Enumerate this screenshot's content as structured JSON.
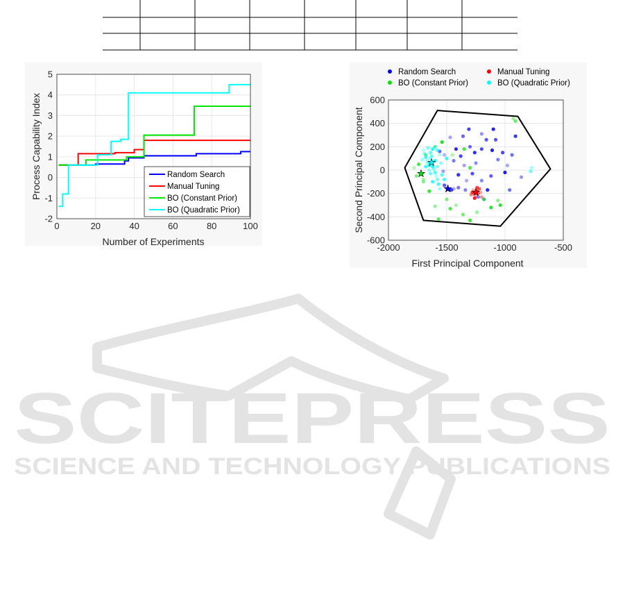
{
  "watermark": {
    "brand": "SCITEPRESS",
    "tagline": "SCIENCE AND TECHNOLOGY PUBLICATIONS"
  },
  "colors": {
    "random": "#0000ff",
    "manual": "#ff0000",
    "constant": "#00e600",
    "quadratic": "#00ffff",
    "hull": "#000000",
    "grid": "#e6e6e6",
    "watermark": "#e3e3e3"
  },
  "chart_data": [
    {
      "type": "line",
      "xlabel": "Number of Experiments",
      "ylabel": "Process Capability Index",
      "xlim": [
        0,
        100
      ],
      "ylim": [
        -2,
        5
      ],
      "xticks": [
        "0",
        "20",
        "40",
        "60",
        "80",
        "100"
      ],
      "yticks": [
        "-2",
        "-1",
        "0",
        "1",
        "2",
        "3",
        "4",
        "5"
      ],
      "grid": true,
      "legend_position": "bottom-right",
      "series": [
        {
          "name": "Random Search",
          "color_key": "random",
          "x": [
            1,
            5,
            10,
            20,
            35,
            37,
            45,
            72,
            95,
            100
          ],
          "y": [
            0.6,
            0.6,
            0.6,
            0.65,
            0.8,
            0.95,
            1.05,
            1.15,
            1.25,
            1.25
          ]
        },
        {
          "name": "Manual Tuning",
          "color_key": "manual",
          "x": [
            1,
            10,
            11,
            30,
            40,
            43,
            45,
            100
          ],
          "y": [
            0.6,
            0.6,
            1.15,
            1.2,
            1.35,
            1.35,
            1.8,
            1.8
          ]
        },
        {
          "name": "BO (Constant Prior)",
          "color_key": "constant",
          "x": [
            1,
            15,
            20,
            36,
            45,
            70,
            71,
            100
          ],
          "y": [
            0.6,
            0.85,
            0.85,
            1.0,
            2.05,
            2.05,
            3.45,
            3.45
          ]
        },
        {
          "name": "BO (Quadratic Prior)",
          "color_key": "quadratic",
          "x": [
            1,
            2,
            3,
            5,
            6,
            20,
            21,
            28,
            31,
            33,
            36,
            37,
            88,
            89,
            100
          ],
          "y": [
            -1.4,
            -1.4,
            -0.8,
            -0.8,
            0.6,
            0.6,
            1.1,
            1.75,
            1.75,
            1.85,
            1.85,
            4.1,
            4.1,
            4.5,
            4.5
          ]
        }
      ]
    },
    {
      "type": "scatter",
      "xlabel": "First Principal Component",
      "ylabel": "Second Principal Component",
      "xlim": [
        -2000,
        -500
      ],
      "ylim": [
        -600,
        600
      ],
      "xticks": [
        "-2000",
        "-1500",
        "-1000",
        "-500"
      ],
      "yticks": [
        "-600",
        "-400",
        "-200",
        "0",
        "200",
        "400",
        "600"
      ],
      "grid": true,
      "legend_position": "top",
      "hull": [
        [
          -1580,
          510
        ],
        [
          -890,
          460
        ],
        [
          -610,
          10
        ],
        [
          -1040,
          -480
        ],
        [
          -1700,
          -430
        ],
        [
          -1860,
          20
        ]
      ],
      "series": [
        {
          "name": "Random Search",
          "color_key": "random",
          "best": [
            -1490,
            -160
          ],
          "points": [
            [
              -1520,
              130
            ],
            [
              -1440,
              80
            ],
            [
              -1380,
              120
            ],
            [
              -1350,
              40
            ],
            [
              -1300,
              200
            ],
            [
              -1260,
              150
            ],
            [
              -1200,
              310
            ],
            [
              -1160,
              260
            ],
            [
              -1110,
              170
            ],
            [
              -1060,
              90
            ],
            [
              -1020,
              150
            ],
            [
              -980,
              40
            ],
            [
              -940,
              130
            ],
            [
              -910,
              290
            ],
            [
              -860,
              -60
            ],
            [
              -1120,
              -50
            ],
            [
              -1150,
              -170
            ],
            [
              -1200,
              -90
            ],
            [
              -1280,
              -30
            ],
            [
              -1330,
              -90
            ],
            [
              -1400,
              -150
            ],
            [
              -1460,
              -170
            ],
            [
              -1530,
              -10
            ],
            [
              -1360,
              290
            ],
            [
              -1420,
              180
            ],
            [
              -1250,
              60
            ],
            [
              -1080,
              260
            ],
            [
              -1000,
              -20
            ],
            [
              -1230,
              -230
            ],
            [
              -1310,
              350
            ],
            [
              -1470,
              280
            ],
            [
              -1560,
              160
            ],
            [
              -1400,
              -40
            ],
            [
              -1180,
              -250
            ],
            [
              -1520,
              -130
            ],
            [
              -1100,
              350
            ],
            [
              -1340,
              -170
            ],
            [
              -1200,
              180
            ],
            [
              -1440,
              -160
            ],
            [
              -960,
              -170
            ]
          ]
        },
        {
          "name": "Manual Tuning",
          "color_key": "manual",
          "best": [
            -1250,
            -190
          ],
          "points": [
            [
              -1270,
              -170
            ],
            [
              -1260,
              -200
            ],
            [
              -1240,
              -180
            ],
            [
              -1250,
              -220
            ],
            [
              -1230,
              -200
            ],
            [
              -1280,
              -190
            ],
            [
              -1200,
              -230
            ],
            [
              -1220,
              -160
            ],
            [
              -1260,
              -240
            ],
            [
              -1290,
              -210
            ],
            [
              -1240,
              -150
            ],
            [
              -1210,
              -190
            ]
          ]
        },
        {
          "name": "BO (Constant Prior)",
          "color_key": "constant",
          "best": [
            -1720,
            -30
          ],
          "points": [
            [
              -1780,
              20
            ],
            [
              -1760,
              -50
            ],
            [
              -1740,
              50
            ],
            [
              -1700,
              -80
            ],
            [
              -1680,
              130
            ],
            [
              -1650,
              -180
            ],
            [
              -1600,
              -310
            ],
            [
              -1570,
              -420
            ],
            [
              -1540,
              240
            ],
            [
              -1500,
              -250
            ],
            [
              -1470,
              -330
            ],
            [
              -1420,
              -300
            ],
            [
              -1360,
              -380
            ],
            [
              -1300,
              -430
            ],
            [
              -1240,
              -360
            ],
            [
              -1180,
              -250
            ],
            [
              -1120,
              -320
            ],
            [
              -1060,
              -260
            ],
            [
              -1300,
              20
            ],
            [
              -1450,
              130
            ],
            [
              -1600,
              200
            ],
            [
              -1350,
              180
            ],
            [
              -930,
              440
            ],
            [
              -910,
              420
            ],
            [
              -1040,
              -300
            ],
            [
              -1700,
              -100
            ]
          ]
        },
        {
          "name": "BO (Quadratic Prior)",
          "color_key": "quadratic",
          "best": [
            -1630,
            65
          ],
          "points": [
            [
              -1700,
              170
            ],
            [
              -1690,
              140
            ],
            [
              -1680,
              110
            ],
            [
              -1670,
              80
            ],
            [
              -1660,
              60
            ],
            [
              -1650,
              40
            ],
            [
              -1640,
              100
            ],
            [
              -1630,
              120
            ],
            [
              -1620,
              30
            ],
            [
              -1610,
              10
            ],
            [
              -1600,
              -20
            ],
            [
              -1590,
              -50
            ],
            [
              -1580,
              -80
            ],
            [
              -1570,
              -120
            ],
            [
              -1560,
              -160
            ],
            [
              -1640,
              150
            ],
            [
              -1620,
              180
            ],
            [
              -1600,
              200
            ],
            [
              -1580,
              170
            ],
            [
              -1560,
              130
            ],
            [
              -1660,
              190
            ],
            [
              -1680,
              30
            ],
            [
              -1710,
              90
            ],
            [
              -1640,
              -30
            ],
            [
              -1620,
              -100
            ],
            [
              -1550,
              60
            ],
            [
              -1540,
              -40
            ],
            [
              -1600,
              80
            ],
            [
              -1580,
              30
            ],
            [
              -1520,
              -80
            ],
            [
              -770,
              20
            ],
            [
              -780,
              -10
            ],
            [
              -1500,
              100
            ],
            [
              -1650,
              0
            ]
          ]
        }
      ]
    }
  ]
}
